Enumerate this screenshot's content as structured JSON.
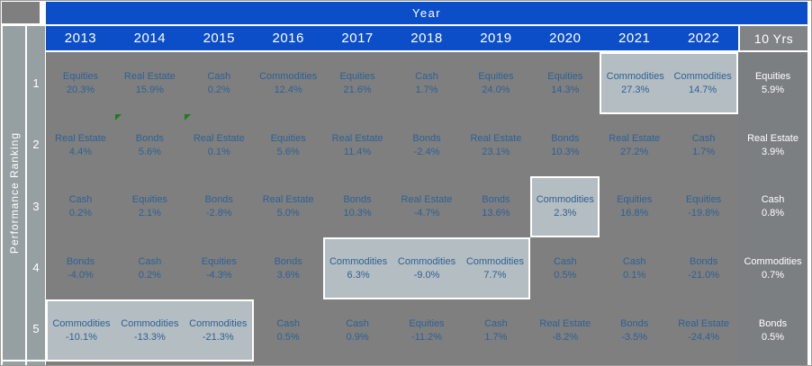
{
  "header": {
    "year_label": "Year",
    "ten_years_label": "10 Yrs"
  },
  "sidebar": {
    "label": "Performance Ranking",
    "ranks": [
      "1",
      "2",
      "3",
      "4",
      "5"
    ]
  },
  "colors": {
    "header_blue": "#0B4EC8",
    "cell_gray": "#7F7F7F",
    "highlight_gray": "#B4BDC1",
    "sidebar_gray": "#96A0A3",
    "cell_text_blue": "#2E6196",
    "ten_years_header_gray": "#808486",
    "flag_green": "#1F7D1F"
  },
  "flags": [
    {
      "rank": "2",
      "column": "2014"
    },
    {
      "rank": "2",
      "column": "2015"
    }
  ],
  "chart_data": {
    "type": "table",
    "x_header": "Year",
    "y_header": "Performance Ranking",
    "columns": [
      "2013",
      "2014",
      "2015",
      "2016",
      "2017",
      "2018",
      "2019",
      "2020",
      "2021",
      "2022",
      "10 Yrs"
    ],
    "rows": [
      {
        "rank": "1",
        "cells": [
          {
            "asset": "Equities",
            "value": "20.3%",
            "highlight": false
          },
          {
            "asset": "Real Estate",
            "value": "15.9%",
            "highlight": false
          },
          {
            "asset": "Cash",
            "value": "0.2%",
            "highlight": false
          },
          {
            "asset": "Commodities",
            "value": "12.4%",
            "highlight": false
          },
          {
            "asset": "Equities",
            "value": "21.6%",
            "highlight": false
          },
          {
            "asset": "Cash",
            "value": "1.7%",
            "highlight": false
          },
          {
            "asset": "Equities",
            "value": "24.0%",
            "highlight": false
          },
          {
            "asset": "Equities",
            "value": "14.3%",
            "highlight": false
          },
          {
            "asset": "Commodities",
            "value": "27.3%",
            "highlight": true
          },
          {
            "asset": "Commodities",
            "value": "14.7%",
            "highlight": true
          },
          {
            "asset": "Equities",
            "value": "5.9%",
            "highlight": false
          }
        ]
      },
      {
        "rank": "2",
        "cells": [
          {
            "asset": "Real Estate",
            "value": "4.4%",
            "highlight": false
          },
          {
            "asset": "Bonds",
            "value": "5.6%",
            "highlight": false
          },
          {
            "asset": "Real Estate",
            "value": "0.1%",
            "highlight": false
          },
          {
            "asset": "Equities",
            "value": "5.6%",
            "highlight": false
          },
          {
            "asset": "Real Estate",
            "value": "11.4%",
            "highlight": false
          },
          {
            "asset": "Bonds",
            "value": "-2.4%",
            "highlight": false
          },
          {
            "asset": "Real Estate",
            "value": "23.1%",
            "highlight": false
          },
          {
            "asset": "Bonds",
            "value": "10.3%",
            "highlight": false
          },
          {
            "asset": "Real Estate",
            "value": "27.2%",
            "highlight": false
          },
          {
            "asset": "Cash",
            "value": "1.7%",
            "highlight": false
          },
          {
            "asset": "Real Estate",
            "value": "3.9%",
            "highlight": false
          }
        ]
      },
      {
        "rank": "3",
        "cells": [
          {
            "asset": "Cash",
            "value": "0.2%",
            "highlight": false
          },
          {
            "asset": "Equities",
            "value": "2.1%",
            "highlight": false
          },
          {
            "asset": "Bonds",
            "value": "-2.8%",
            "highlight": false
          },
          {
            "asset": "Real Estate",
            "value": "5.0%",
            "highlight": false
          },
          {
            "asset": "Bonds",
            "value": "10.3%",
            "highlight": false
          },
          {
            "asset": "Real Estate",
            "value": "-4.7%",
            "highlight": false
          },
          {
            "asset": "Bonds",
            "value": "13.6%",
            "highlight": false
          },
          {
            "asset": "Commodities",
            "value": "2.3%",
            "highlight": true
          },
          {
            "asset": "Equities",
            "value": "16.8%",
            "highlight": false
          },
          {
            "asset": "Equities",
            "value": "-19.8%",
            "highlight": false
          },
          {
            "asset": "Cash",
            "value": "0.8%",
            "highlight": false
          }
        ]
      },
      {
        "rank": "4",
        "cells": [
          {
            "asset": "Bonds",
            "value": "-4.0%",
            "highlight": false
          },
          {
            "asset": "Cash",
            "value": "0.2%",
            "highlight": false
          },
          {
            "asset": "Equities",
            "value": "-4.3%",
            "highlight": false
          },
          {
            "asset": "Bonds",
            "value": "3.6%",
            "highlight": false
          },
          {
            "asset": "Commodities",
            "value": "6.3%",
            "highlight": true
          },
          {
            "asset": "Commodities",
            "value": "-9.0%",
            "highlight": true
          },
          {
            "asset": "Commodities",
            "value": "7.7%",
            "highlight": true
          },
          {
            "asset": "Cash",
            "value": "0.5%",
            "highlight": false
          },
          {
            "asset": "Cash",
            "value": "0.1%",
            "highlight": false
          },
          {
            "asset": "Bonds",
            "value": "-21.0%",
            "highlight": false
          },
          {
            "asset": "Commodities",
            "value": "0.7%",
            "highlight": false
          }
        ]
      },
      {
        "rank": "5",
        "cells": [
          {
            "asset": "Commodities",
            "value": "-10.1%",
            "highlight": true
          },
          {
            "asset": "Commodities",
            "value": "-13.3%",
            "highlight": true
          },
          {
            "asset": "Commodities",
            "value": "-21.3%",
            "highlight": true
          },
          {
            "asset": "Cash",
            "value": "0.5%",
            "highlight": false
          },
          {
            "asset": "Cash",
            "value": "0.9%",
            "highlight": false
          },
          {
            "asset": "Equities",
            "value": "-11.2%",
            "highlight": false
          },
          {
            "asset": "Cash",
            "value": "1.7%",
            "highlight": false
          },
          {
            "asset": "Real Estate",
            "value": "-8.2%",
            "highlight": false
          },
          {
            "asset": "Bonds",
            "value": "-3.5%",
            "highlight": false
          },
          {
            "asset": "Real Estate",
            "value": "-24.4%",
            "highlight": false
          },
          {
            "asset": "Bonds",
            "value": "0.5%",
            "highlight": false
          }
        ]
      }
    ]
  }
}
